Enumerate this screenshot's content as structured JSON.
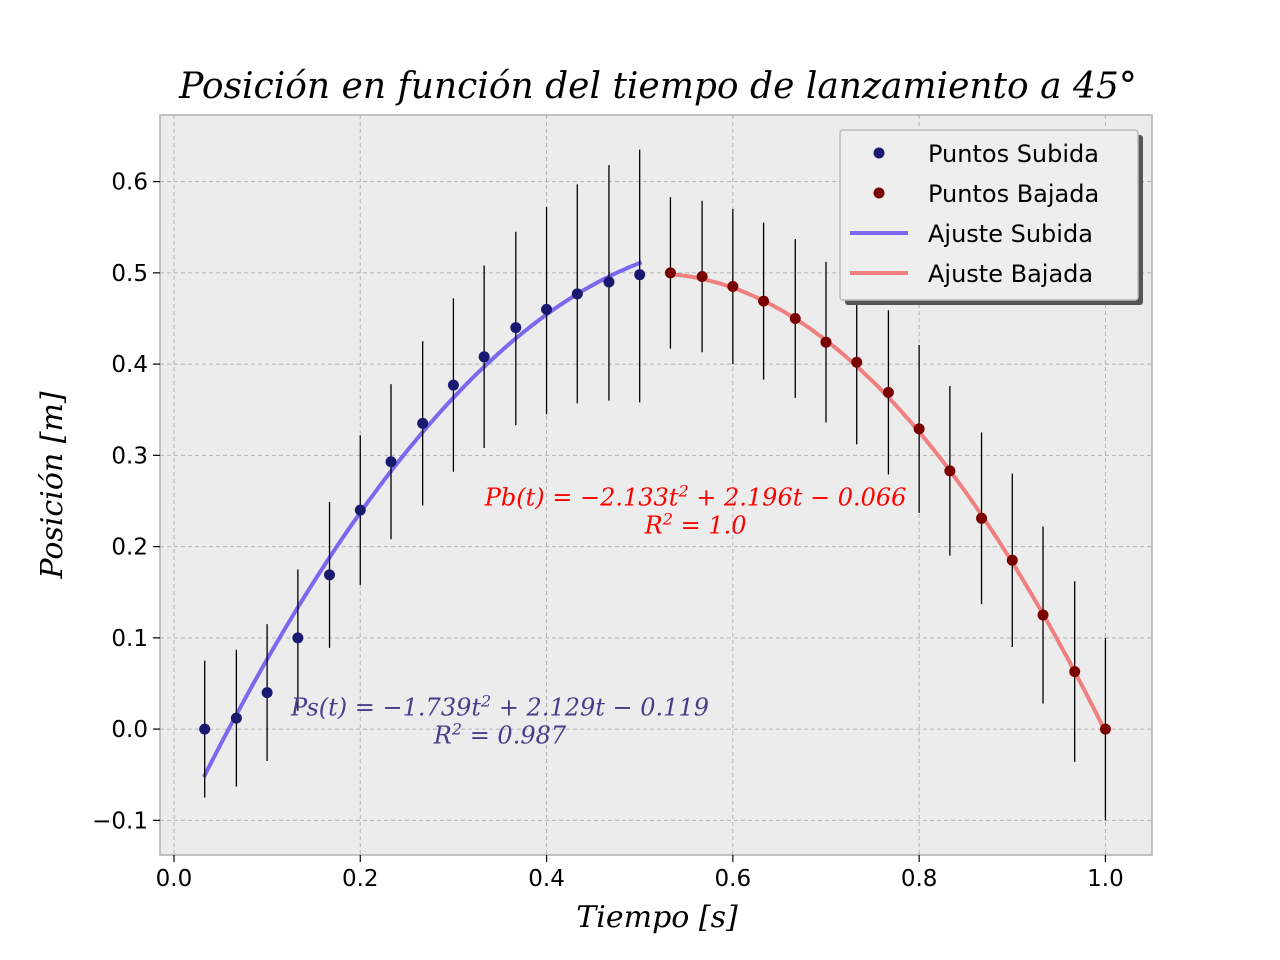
{
  "chart_data": {
    "type": "scatter",
    "title": "Posición en función del tiempo de lanzamiento a 45°",
    "xlabel": "Tiempo [s]",
    "ylabel": "Posición [m]",
    "xlim": [
      -0.015,
      1.05
    ],
    "ylim": [
      -0.138,
      0.673
    ],
    "x_ticks": [
      "0.0",
      "0.2",
      "0.4",
      "0.6",
      "0.8",
      "1.0"
    ],
    "x_tick_values": [
      0.0,
      0.2,
      0.4,
      0.6,
      0.8,
      1.0
    ],
    "y_ticks": [
      "−0.1",
      "0.0",
      "0.1",
      "0.2",
      "0.3",
      "0.4",
      "0.5",
      "0.6"
    ],
    "y_tick_values": [
      -0.1,
      0.0,
      0.1,
      0.2,
      0.3,
      0.4,
      0.5,
      0.6
    ],
    "grid": true,
    "legend_position": "top-right",
    "colors": {
      "background": "#ececec",
      "subida_points": "#191970",
      "bajada_points": "#7a0000",
      "subida_fit": "#7b68ee",
      "bajada_fit": "#f08080",
      "annot_subida": "#483d8b",
      "annot_bajada": "#ff0000",
      "errorbar": "#000000"
    },
    "series": [
      {
        "name": "Puntos Subida",
        "kind": "points",
        "x": [
          0.033,
          0.067,
          0.1,
          0.133,
          0.167,
          0.2,
          0.233,
          0.267,
          0.3,
          0.333,
          0.367,
          0.4,
          0.433,
          0.467,
          0.5
        ],
        "y": [
          0.0,
          0.012,
          0.04,
          0.1,
          0.169,
          0.24,
          0.293,
          0.335,
          0.377,
          0.408,
          0.44,
          0.46,
          0.477,
          0.49,
          0.498
        ],
        "yerr_low": [
          0.075,
          0.075,
          0.075,
          0.08,
          0.08,
          0.082,
          0.085,
          0.09,
          0.095,
          0.1,
          0.107,
          0.115,
          0.12,
          0.13,
          0.14
        ],
        "yerr_high": [
          0.075,
          0.075,
          0.075,
          0.075,
          0.08,
          0.082,
          0.085,
          0.09,
          0.095,
          0.1,
          0.105,
          0.112,
          0.12,
          0.128,
          0.137
        ]
      },
      {
        "name": "Puntos Bajada",
        "kind": "points",
        "x": [
          0.533,
          0.567,
          0.6,
          0.633,
          0.667,
          0.7,
          0.733,
          0.767,
          0.8,
          0.833,
          0.867,
          0.9,
          0.933,
          0.967,
          1.0
        ],
        "y": [
          0.5,
          0.496,
          0.485,
          0.469,
          0.45,
          0.424,
          0.402,
          0.369,
          0.329,
          0.283,
          0.231,
          0.185,
          0.125,
          0.063,
          0.0
        ],
        "yerr_low": [
          0.083,
          0.083,
          0.085,
          0.086,
          0.087,
          0.088,
          0.09,
          0.09,
          0.092,
          0.093,
          0.094,
          0.095,
          0.097,
          0.099,
          0.1
        ],
        "yerr_high": [
          0.083,
          0.083,
          0.085,
          0.086,
          0.087,
          0.088,
          0.09,
          0.09,
          0.092,
          0.093,
          0.094,
          0.095,
          0.097,
          0.099,
          0.1
        ]
      },
      {
        "name": "Ajuste Subida",
        "kind": "fit",
        "coefficients": [
          -1.739,
          2.129,
          -0.119
        ],
        "x_range": [
          0.033,
          0.5
        ]
      },
      {
        "name": "Ajuste Bajada",
        "kind": "fit",
        "coefficients": [
          -2.133,
          2.196,
          -0.066
        ],
        "x_range": [
          0.533,
          1.0
        ]
      }
    ],
    "annotations": [
      {
        "lhs": "Pb(t)",
        "rhs": " = −2.133t",
        "sup": "2",
        "rest": " + 2.196t − 0.066",
        "r2_prefix": "R",
        "r2_sup": "2",
        "r2_rest": " = 1.0",
        "color": "#ff0000",
        "at": [
          0.56,
          0.245
        ]
      },
      {
        "lhs": "Ps(t)",
        "rhs": " = −1.739t",
        "sup": "2",
        "rest": " + 2.129t − 0.119",
        "r2_prefix": "R",
        "r2_sup": "2",
        "r2_rest": " = 0.987",
        "color": "#483d8b",
        "at": [
          0.35,
          0.015
        ]
      }
    ]
  }
}
